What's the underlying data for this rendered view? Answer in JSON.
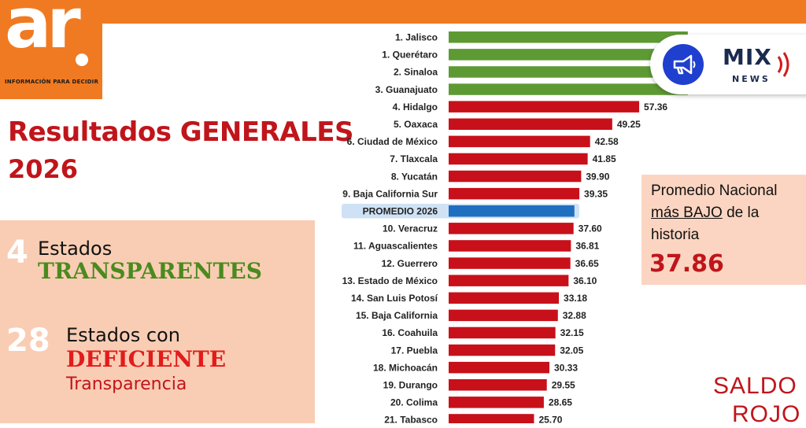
{
  "logo": {
    "mark": "ar",
    "tagline": "INFORMACIÓN PARA DECIDIR",
    "brand_color": "#f07a22"
  },
  "heading": {
    "line1": "Resultados GENERALES",
    "line2": "2026"
  },
  "summary": {
    "transparent_count": "4",
    "transparent_label": "Estados",
    "transparent_word": "TRANSPARENTES",
    "deficient_count": "28",
    "deficient_label": "Estados con",
    "deficient_word": "DEFICIENTE",
    "deficient_suffix": "Transparencia"
  },
  "callout": {
    "line1": "Promedio Nacional",
    "line2a": "más BAJO",
    "line2b": " de la",
    "line3": "historia",
    "value": "37.86"
  },
  "footer_note": {
    "line1": "SALDO",
    "line2": "ROJO"
  },
  "badge": {
    "icon": "megaphone-icon",
    "brand": "MIX",
    "sub": "NEWS"
  },
  "chart_data": {
    "type": "bar",
    "orientation": "horizontal",
    "categories": [
      "1. Jalisco",
      "1. Querétaro",
      "2. Sinaloa",
      "3. Guanajuato",
      "4. Hidalgo",
      "5. Oaxaca",
      "6. Ciudad de México",
      "7. Tlaxcala",
      "8. Yucatán",
      "9. Baja California Sur",
      "PROMEDIO 2026",
      "10. Veracruz",
      "11. Aguascalientes",
      "12. Guerrero",
      "13. Estado de México",
      "14. San Luis Potosí",
      "15. Baja California",
      "16. Coahuila",
      "17. Puebla",
      "18. Michoacán",
      "19. Durango",
      "20. Colima",
      "21. Tabasco"
    ],
    "values": [
      null,
      null,
      null,
      null,
      57.36,
      49.25,
      42.58,
      41.85,
      39.9,
      39.35,
      37.86,
      37.6,
      36.81,
      36.65,
      36.1,
      33.18,
      32.88,
      32.15,
      32.05,
      30.33,
      29.55,
      28.65,
      25.7
    ],
    "value_labels": [
      "",
      "",
      "",
      "",
      "57.36",
      "49.25",
      "42.58",
      "41.85",
      "39.90",
      "39.35",
      "",
      "37.60",
      "36.81",
      "36.65",
      "36.10",
      "33.18",
      "32.88",
      "32.15",
      "32.05",
      "30.33",
      "29.55",
      "28.65",
      "25.70"
    ],
    "bar_lengths": [
      72,
      72,
      72,
      72,
      57.36,
      49.25,
      42.58,
      41.85,
      39.9,
      39.35,
      37.86,
      37.6,
      36.81,
      36.65,
      36.1,
      33.18,
      32.88,
      32.15,
      32.05,
      30.33,
      29.55,
      28.65,
      25.7
    ],
    "bar_colors": [
      "#5e9a34",
      "#5e9a34",
      "#5e9a34",
      "#5e9a34",
      "#c8101a",
      "#c8101a",
      "#c8101a",
      "#c8101a",
      "#c8101a",
      "#c8101a",
      "#1f6fc0",
      "#c8101a",
      "#c8101a",
      "#c8101a",
      "#c8101a",
      "#c8101a",
      "#c8101a",
      "#c8101a",
      "#c8101a",
      "#c8101a",
      "#c8101a",
      "#c8101a",
      "#c8101a"
    ],
    "highlight_category": "PROMEDIO 2026",
    "colors": {
      "transparent": "#5e9a34",
      "deficient": "#c8101a",
      "average": "#1f6fc0"
    }
  }
}
